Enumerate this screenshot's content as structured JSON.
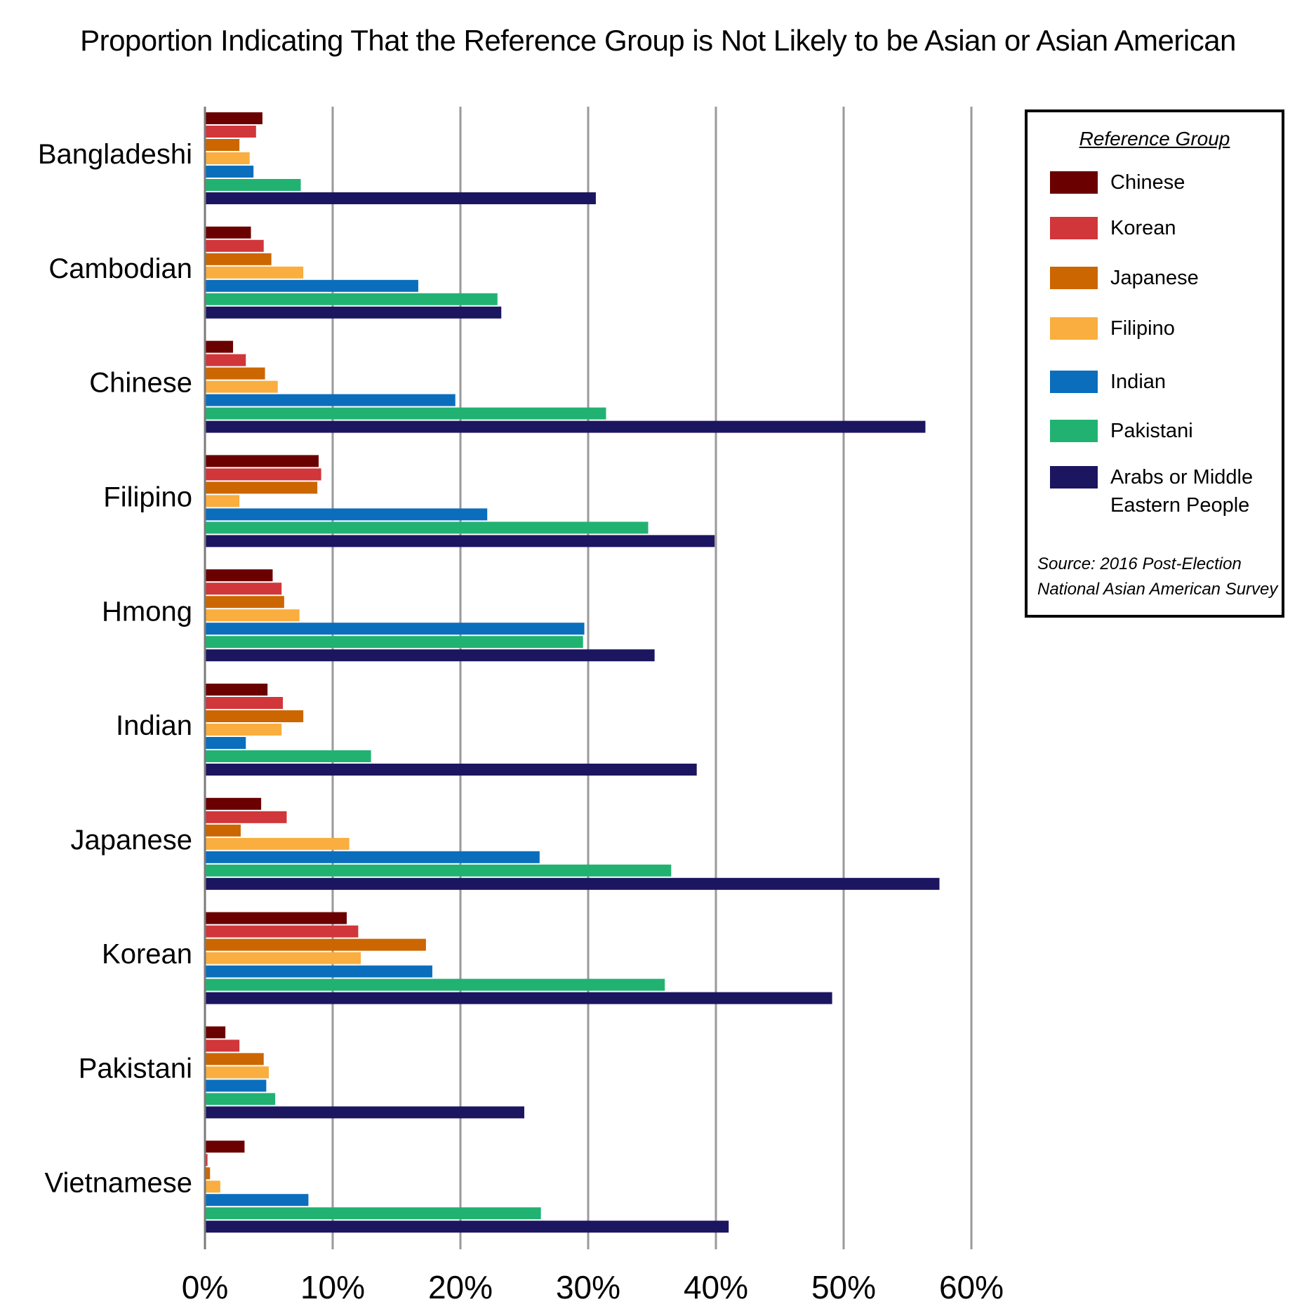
{
  "chart_data": {
    "type": "bar",
    "orientation": "horizontal",
    "title": "Proportion Indicating That the Reference Group is Not Likely to be Asian or Asian American",
    "xlabel": "",
    "ylabel": "",
    "xlim": [
      0,
      60
    ],
    "x_ticks": [
      "0%",
      "10%",
      "20%",
      "30%",
      "40%",
      "50%",
      "60%"
    ],
    "grid": "vertical",
    "legend_position": "right",
    "legend_title": "Reference Group",
    "source_note": [
      "Source: 2016 Post-Election",
      "National Asian American Survey"
    ],
    "categories": [
      "Bangladeshi",
      "Cambodian",
      "Chinese",
      "Filipino",
      "Hmong",
      "Indian",
      "Japanese",
      "Korean",
      "Pakistani",
      "Vietnamese"
    ],
    "series": [
      {
        "name": "Chinese",
        "color": "#6b0000",
        "values": [
          4.5,
          3.6,
          2.2,
          8.9,
          5.3,
          4.9,
          4.4,
          11.1,
          1.6,
          3.1
        ]
      },
      {
        "name": "Korean",
        "color": "#d0363a",
        "values": [
          4.0,
          4.6,
          3.2,
          9.1,
          6.0,
          6.1,
          6.4,
          12.0,
          2.7,
          0.2
        ]
      },
      {
        "name": "Japanese",
        "color": "#cc6600",
        "values": [
          2.7,
          5.2,
          4.7,
          8.8,
          6.2,
          7.7,
          2.8,
          17.3,
          4.6,
          0.4
        ]
      },
      {
        "name": "Filipino",
        "color": "#f9ae3f",
        "values": [
          3.5,
          7.7,
          5.7,
          2.7,
          7.4,
          6.0,
          11.3,
          12.2,
          5.0,
          1.2
        ]
      },
      {
        "name": "Indian",
        "color": "#0a6ebd",
        "values": [
          3.8,
          16.7,
          19.6,
          22.1,
          29.7,
          3.2,
          26.2,
          17.8,
          4.8,
          8.1
        ]
      },
      {
        "name": "Pakistani",
        "color": "#21b272",
        "values": [
          7.5,
          22.9,
          31.4,
          34.7,
          29.6,
          13.0,
          36.5,
          36.0,
          5.5,
          26.3
        ]
      },
      {
        "name": "Arabs or Middle Eastern People",
        "legend_lines": [
          "Arabs or Middle",
          "Eastern People"
        ],
        "color": "#1c1660",
        "values": [
          30.6,
          23.2,
          56.4,
          39.9,
          35.2,
          38.5,
          57.5,
          49.1,
          25.0,
          41.0
        ]
      }
    ]
  }
}
